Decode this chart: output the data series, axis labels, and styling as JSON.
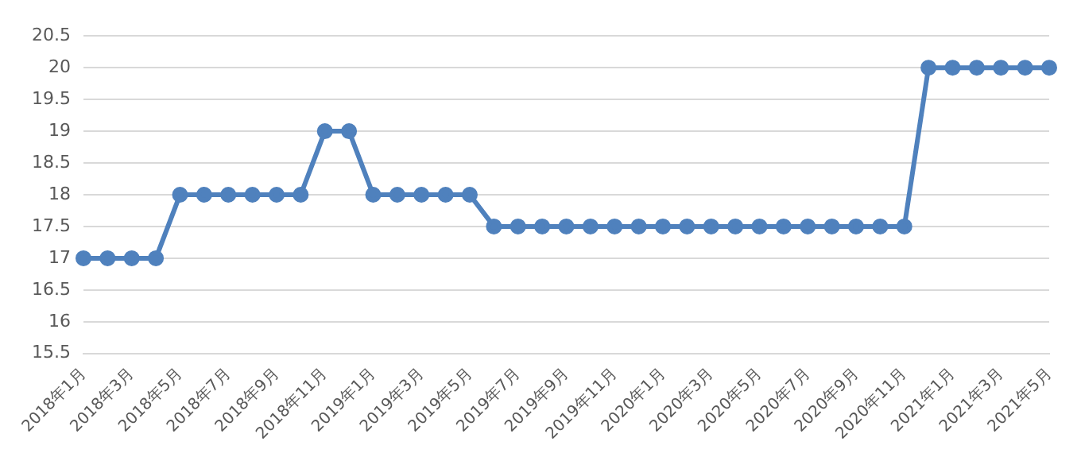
{
  "chart_data": {
    "type": "line",
    "categories": [
      "2018年1月",
      null,
      "2018年3月",
      null,
      "2018年5月",
      null,
      "2018年7月",
      null,
      "2018年9月",
      null,
      "2018年11月",
      null,
      "2019年1月",
      null,
      "2019年3月",
      null,
      "2019年5月",
      null,
      "2019年7月",
      null,
      "2019年9月",
      null,
      "2019年11月",
      null,
      "2020年1月",
      null,
      "2020年3月",
      null,
      "2020年5月",
      null,
      "2020年7月",
      null,
      "2020年9月",
      null,
      "2020年11月",
      null,
      "2021年1月",
      null,
      "2021年3月",
      null,
      "2021年5月"
    ],
    "series": [
      {
        "color": "#4f81bd",
        "values": [
          17,
          17,
          17,
          17,
          18,
          18,
          18,
          18,
          18,
          18,
          19,
          19,
          18,
          18,
          18,
          18,
          18,
          17.5,
          17.5,
          17.5,
          17.5,
          17.5,
          17.5,
          17.5,
          17.5,
          17.5,
          17.5,
          17.5,
          17.5,
          17.5,
          17.5,
          17.5,
          17.5,
          17.5,
          17.5,
          20,
          20,
          20,
          20,
          20,
          20
        ]
      }
    ],
    "ylim": [
      15.5,
      20.5
    ],
    "yticks": [
      15.5,
      16,
      16.5,
      17,
      17.5,
      18,
      18.5,
      19,
      19.5,
      20,
      20.5
    ],
    "grid": "y",
    "marker": "circle",
    "line_style": "solid",
    "legend": false
  }
}
